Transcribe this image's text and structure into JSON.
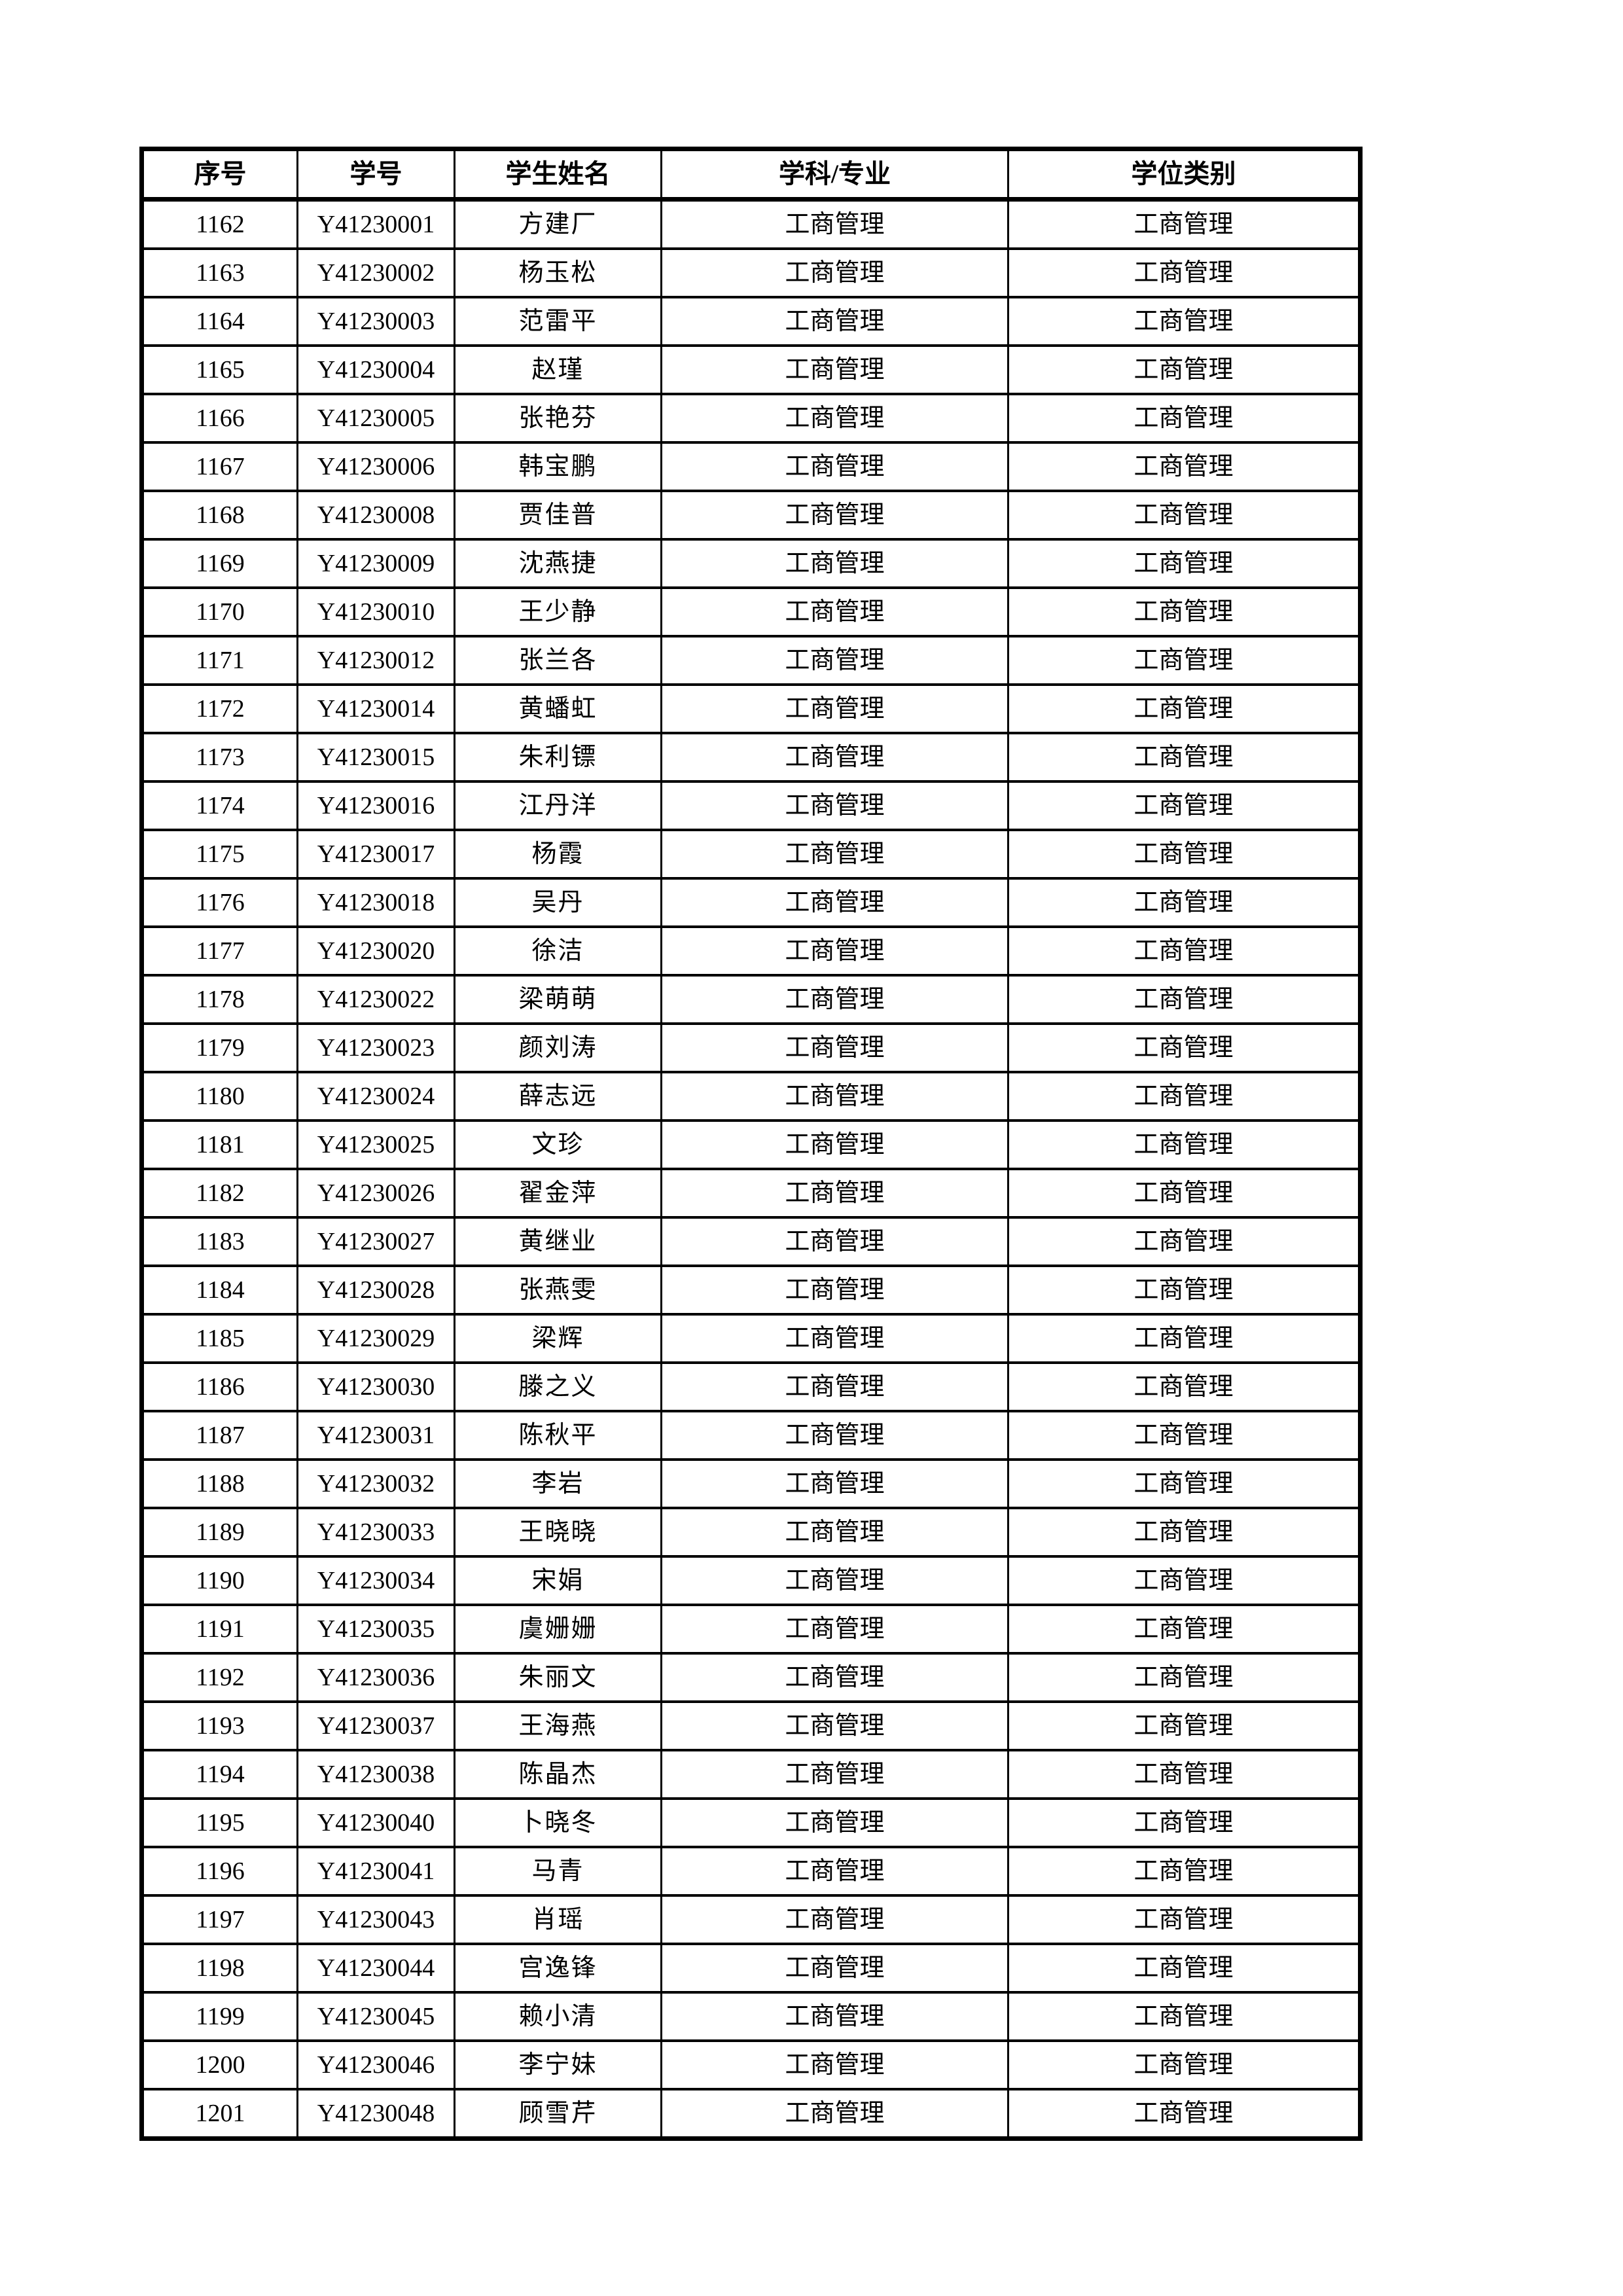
{
  "table": {
    "headers": [
      "序号",
      "学号",
      "学生姓名",
      "学科/专业",
      "学位类别"
    ],
    "rows": [
      [
        "1162",
        "Y41230001",
        "方建厂",
        "工商管理",
        "工商管理"
      ],
      [
        "1163",
        "Y41230002",
        "杨玉松",
        "工商管理",
        "工商管理"
      ],
      [
        "1164",
        "Y41230003",
        "范雷平",
        "工商管理",
        "工商管理"
      ],
      [
        "1165",
        "Y41230004",
        "赵瑾",
        "工商管理",
        "工商管理"
      ],
      [
        "1166",
        "Y41230005",
        "张艳芬",
        "工商管理",
        "工商管理"
      ],
      [
        "1167",
        "Y41230006",
        "韩宝鹏",
        "工商管理",
        "工商管理"
      ],
      [
        "1168",
        "Y41230008",
        "贾佳普",
        "工商管理",
        "工商管理"
      ],
      [
        "1169",
        "Y41230009",
        "沈燕捷",
        "工商管理",
        "工商管理"
      ],
      [
        "1170",
        "Y41230010",
        "王少静",
        "工商管理",
        "工商管理"
      ],
      [
        "1171",
        "Y41230012",
        "张兰各",
        "工商管理",
        "工商管理"
      ],
      [
        "1172",
        "Y41230014",
        "黄蟠虹",
        "工商管理",
        "工商管理"
      ],
      [
        "1173",
        "Y41230015",
        "朱利镖",
        "工商管理",
        "工商管理"
      ],
      [
        "1174",
        "Y41230016",
        "江丹洋",
        "工商管理",
        "工商管理"
      ],
      [
        "1175",
        "Y41230017",
        "杨霞",
        "工商管理",
        "工商管理"
      ],
      [
        "1176",
        "Y41230018",
        "吴丹",
        "工商管理",
        "工商管理"
      ],
      [
        "1177",
        "Y41230020",
        "徐洁",
        "工商管理",
        "工商管理"
      ],
      [
        "1178",
        "Y41230022",
        "梁萌萌",
        "工商管理",
        "工商管理"
      ],
      [
        "1179",
        "Y41230023",
        "颜刘涛",
        "工商管理",
        "工商管理"
      ],
      [
        "1180",
        "Y41230024",
        "薛志远",
        "工商管理",
        "工商管理"
      ],
      [
        "1181",
        "Y41230025",
        "文珍",
        "工商管理",
        "工商管理"
      ],
      [
        "1182",
        "Y41230026",
        "翟金萍",
        "工商管理",
        "工商管理"
      ],
      [
        "1183",
        "Y41230027",
        "黄继业",
        "工商管理",
        "工商管理"
      ],
      [
        "1184",
        "Y41230028",
        "张燕雯",
        "工商管理",
        "工商管理"
      ],
      [
        "1185",
        "Y41230029",
        "梁辉",
        "工商管理",
        "工商管理"
      ],
      [
        "1186",
        "Y41230030",
        "滕之义",
        "工商管理",
        "工商管理"
      ],
      [
        "1187",
        "Y41230031",
        "陈秋平",
        "工商管理",
        "工商管理"
      ],
      [
        "1188",
        "Y41230032",
        "李岩",
        "工商管理",
        "工商管理"
      ],
      [
        "1189",
        "Y41230033",
        "王晓晓",
        "工商管理",
        "工商管理"
      ],
      [
        "1190",
        "Y41230034",
        "宋娟",
        "工商管理",
        "工商管理"
      ],
      [
        "1191",
        "Y41230035",
        "虞姗姗",
        "工商管理",
        "工商管理"
      ],
      [
        "1192",
        "Y41230036",
        "朱丽文",
        "工商管理",
        "工商管理"
      ],
      [
        "1193",
        "Y41230037",
        "王海燕",
        "工商管理",
        "工商管理"
      ],
      [
        "1194",
        "Y41230038",
        "陈晶杰",
        "工商管理",
        "工商管理"
      ],
      [
        "1195",
        "Y41230040",
        "卜晓冬",
        "工商管理",
        "工商管理"
      ],
      [
        "1196",
        "Y41230041",
        "马青",
        "工商管理",
        "工商管理"
      ],
      [
        "1197",
        "Y41230043",
        "肖瑶",
        "工商管理",
        "工商管理"
      ],
      [
        "1198",
        "Y41230044",
        "宫逸锋",
        "工商管理",
        "工商管理"
      ],
      [
        "1199",
        "Y41230045",
        "赖小清",
        "工商管理",
        "工商管理"
      ],
      [
        "1200",
        "Y41230046",
        "李宁妹",
        "工商管理",
        "工商管理"
      ],
      [
        "1201",
        "Y41230048",
        "顾雪芹",
        "工商管理",
        "工商管理"
      ]
    ]
  }
}
